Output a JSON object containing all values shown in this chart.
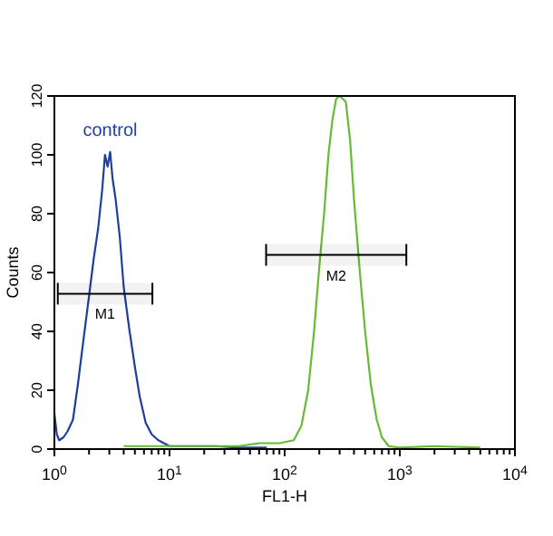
{
  "chart_data": {
    "type": "line",
    "xlabel": "FL1-H",
    "ylabel": "Counts",
    "log": "x",
    "xlim": [
      1,
      10000
    ],
    "ylim": [
      0,
      120
    ],
    "xticks": [
      {
        "value": 1,
        "label": "10$^{0}$"
      },
      {
        "value": 2,
        "label": null
      },
      {
        "value": 3,
        "label": null
      },
      {
        "value": 4,
        "label": null
      },
      {
        "value": 5,
        "label": null
      },
      {
        "value": 6,
        "label": null
      },
      {
        "value": 7,
        "label": null
      },
      {
        "value": 8,
        "label": null
      },
      {
        "value": 9,
        "label": null
      },
      {
        "value": 10,
        "label": "10$^{1}$"
      },
      {
        "value": 20,
        "label": null
      },
      {
        "value": 30,
        "label": null
      },
      {
        "value": 40,
        "label": null
      },
      {
        "value": 50,
        "label": null
      },
      {
        "value": 60,
        "label": null
      },
      {
        "value": 70,
        "label": null
      },
      {
        "value": 80,
        "label": null
      },
      {
        "value": 90,
        "label": null
      },
      {
        "value": 100,
        "label": "10$^{2}$"
      },
      {
        "value": 200,
        "label": null
      },
      {
        "value": 300,
        "label": null
      },
      {
        "value": 400,
        "label": null
      },
      {
        "value": 500,
        "label": null
      },
      {
        "value": 600,
        "label": null
      },
      {
        "value": 700,
        "label": null
      },
      {
        "value": 800,
        "label": null
      },
      {
        "value": 900,
        "label": null
      },
      {
        "value": 1000,
        "label": "10$^{3}$"
      },
      {
        "value": 2000,
        "label": null
      },
      {
        "value": 3000,
        "label": null
      },
      {
        "value": 4000,
        "label": null
      },
      {
        "value": 5000,
        "label": null
      },
      {
        "value": 6000,
        "label": null
      },
      {
        "value": 7000,
        "label": null
      },
      {
        "value": 8000,
        "label": null
      },
      {
        "value": 9000,
        "label": null
      },
      {
        "value": 10000,
        "label": "10$^{4}$"
      }
    ],
    "yticks": [
      0,
      20,
      40,
      60,
      80,
      100,
      120
    ],
    "grid": false,
    "bands": [
      {
        "axis": "x",
        "from": 1.07,
        "to": 7.1,
        "label": "M1",
        "color": "#000000"
      },
      {
        "axis": "x",
        "from": 69,
        "to": 1140,
        "label": "M2",
        "color": "#000000"
      }
    ],
    "series": [
      {
        "name": "control",
        "color": "#1f3f9f",
        "x": [
          1.0,
          1.05,
          1.1,
          1.2,
          1.3,
          1.45,
          1.6,
          1.8,
          2.0,
          2.2,
          2.4,
          2.6,
          2.75,
          2.9,
          3.05,
          3.2,
          3.4,
          3.7,
          4.0,
          4.5,
          5.0,
          5.5,
          6.2,
          7,
          8,
          10,
          15,
          25,
          40,
          70
        ],
        "values": [
          12,
          5,
          3,
          4,
          6,
          10,
          22,
          38,
          52,
          65,
          75,
          88,
          100,
          96,
          101,
          92,
          85,
          72,
          55,
          40,
          28,
          18,
          9,
          5,
          3,
          1,
          1,
          1,
          0.5,
          0.5
        ]
      },
      {
        "color": "#66bb33",
        "x": [
          4,
          5,
          10,
          20,
          40,
          60,
          90,
          120,
          140,
          160,
          180,
          200,
          220,
          240,
          260,
          280,
          300,
          320,
          340,
          370,
          400,
          450,
          500,
          560,
          630,
          700,
          800,
          1000,
          2000,
          5000
        ],
        "values": [
          1,
          1,
          1,
          1,
          1,
          2,
          2,
          3,
          8,
          20,
          40,
          62,
          80,
          100,
          112,
          119,
          120,
          119,
          118,
          105,
          85,
          60,
          40,
          22,
          10,
          4,
          1,
          0.5,
          1,
          0.5
        ]
      }
    ]
  }
}
